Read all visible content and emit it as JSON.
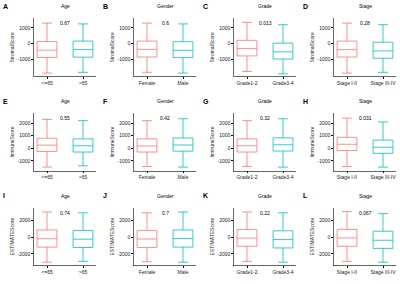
{
  "chart_data": [
    {
      "type": "box",
      "label": "A",
      "title": "Age",
      "annotation": "0.67",
      "y_label": "StromalScore",
      "categories": [
        "<=65",
        ">65"
      ],
      "series": [
        {
          "name": "<=65",
          "color": "#F8766D",
          "q1": -900,
          "median": -430,
          "q3": 120,
          "lower": -1900,
          "upper": 1300
        },
        {
          "name": ">65",
          "color": "#00BFC4",
          "q1": -880,
          "median": -400,
          "q3": 150,
          "lower": -1850,
          "upper": 1250
        }
      ],
      "ylim": [
        -2100,
        1600
      ],
      "yticks": [
        -1000,
        0,
        1000
      ]
    },
    {
      "type": "box",
      "label": "B",
      "title": "Gender",
      "annotation": "0.6",
      "y_label": "StromalScore",
      "categories": [
        "Female",
        "Male"
      ],
      "series": [
        {
          "name": "Female",
          "color": "#F8766D",
          "q1": -870,
          "median": -380,
          "q3": 150,
          "lower": -1850,
          "upper": 1300
        },
        {
          "name": "Male",
          "color": "#00BFC4",
          "q1": -910,
          "median": -440,
          "q3": 110,
          "lower": -1900,
          "upper": 1250
        }
      ],
      "ylim": [
        -2100,
        1600
      ],
      "yticks": [
        -1000,
        0,
        1000
      ]
    },
    {
      "type": "box",
      "label": "C",
      "title": "Grade",
      "annotation": "0.013",
      "y_label": "StromalScore",
      "categories": [
        "Grade1-2",
        "Grade3-4"
      ],
      "series": [
        {
          "name": "Grade1-2",
          "color": "#F8766D",
          "q1": -800,
          "median": -330,
          "q3": 200,
          "lower": -1800,
          "upper": 1350
        },
        {
          "name": "Grade3-4",
          "color": "#00BFC4",
          "q1": -1000,
          "median": -540,
          "q3": 20,
          "lower": -1950,
          "upper": 1200
        }
      ],
      "ylim": [
        -2100,
        1600
      ],
      "yticks": [
        -1000,
        0,
        1000
      ]
    },
    {
      "type": "box",
      "label": "D",
      "title": "Stage",
      "annotation": "0.28",
      "y_label": "StromalScore",
      "categories": [
        "Stage I-II",
        "Stage III-IV"
      ],
      "series": [
        {
          "name": "Stage I-II",
          "color": "#F8766D",
          "q1": -870,
          "median": -400,
          "q3": 150,
          "lower": -1900,
          "upper": 1300
        },
        {
          "name": "Stage III-IV",
          "color": "#00BFC4",
          "q1": -950,
          "median": -480,
          "q3": 80,
          "lower": -1850,
          "upper": 1200
        }
      ],
      "ylim": [
        -2100,
        1600
      ],
      "yticks": [
        -1000,
        0,
        1000
      ]
    },
    {
      "type": "box",
      "label": "E",
      "title": "Age",
      "annotation": "0.55",
      "y_label": "ImmuneScore",
      "categories": [
        "<=65",
        ">65"
      ],
      "series": [
        {
          "name": "<=65",
          "color": "#F8766D",
          "q1": -250,
          "median": 250,
          "q3": 800,
          "lower": -1500,
          "upper": 2300
        },
        {
          "name": ">65",
          "color": "#00BFC4",
          "q1": -300,
          "median": 200,
          "q3": 750,
          "lower": -1400,
          "upper": 2200
        }
      ],
      "ylim": [
        -1800,
        2800
      ],
      "yticks": [
        -1000,
        0,
        1000,
        2000
      ]
    },
    {
      "type": "box",
      "label": "F",
      "title": "Gender",
      "annotation": "0.42",
      "y_label": "ImmuneScore",
      "categories": [
        "Female",
        "Male"
      ],
      "series": [
        {
          "name": "Female",
          "color": "#F8766D",
          "q1": -300,
          "median": 180,
          "q3": 750,
          "lower": -1450,
          "upper": 2200
        },
        {
          "name": "Male",
          "color": "#00BFC4",
          "q1": -230,
          "median": 260,
          "q3": 820,
          "lower": -1500,
          "upper": 2350
        }
      ],
      "ylim": [
        -1800,
        2800
      ],
      "yticks": [
        -1000,
        0,
        1000,
        2000
      ]
    },
    {
      "type": "box",
      "label": "G",
      "title": "Grade",
      "annotation": "0.32",
      "y_label": "ImmuneScore",
      "categories": [
        "Grade1-2",
        "Grade3-4"
      ],
      "series": [
        {
          "name": "Grade1-2",
          "color": "#F8766D",
          "q1": -300,
          "median": 200,
          "q3": 750,
          "lower": -1450,
          "upper": 2200
        },
        {
          "name": "Grade3-4",
          "color": "#00BFC4",
          "q1": -220,
          "median": 280,
          "q3": 830,
          "lower": -1500,
          "upper": 2350
        }
      ],
      "ylim": [
        -1800,
        2800
      ],
      "yticks": [
        -1000,
        0,
        1000,
        2000
      ]
    },
    {
      "type": "box",
      "label": "H",
      "title": "Stage",
      "annotation": "0.031",
      "y_label": "ImmuneScore",
      "categories": [
        "Stage I-II",
        "Stage III-IV"
      ],
      "series": [
        {
          "name": "Stage I-II",
          "color": "#F8766D",
          "q1": -180,
          "median": 320,
          "q3": 870,
          "lower": -1450,
          "upper": 2400
        },
        {
          "name": "Stage III-IV",
          "color": "#00BFC4",
          "q1": -400,
          "median": 80,
          "q3": 650,
          "lower": -1500,
          "upper": 2100
        }
      ],
      "ylim": [
        -1800,
        2800
      ],
      "yticks": [
        -1000,
        0,
        1000,
        2000
      ]
    },
    {
      "type": "box",
      "label": "I",
      "title": "Age",
      "annotation": "0.74",
      "y_label": "ESTIMATEScore",
      "categories": [
        "<=65",
        ">65"
      ],
      "series": [
        {
          "name": "<=65",
          "color": "#F8766D",
          "q1": -1200,
          "median": -200,
          "q3": 850,
          "lower": -3000,
          "upper": 3000
        },
        {
          "name": ">65",
          "color": "#00BFC4",
          "q1": -1250,
          "median": -250,
          "q3": 800,
          "lower": -2900,
          "upper": 2900
        }
      ],
      "ylim": [
        -3400,
        3500
      ],
      "yticks": [
        -2000,
        0,
        2000
      ]
    },
    {
      "type": "box",
      "label": "J",
      "title": "Gender",
      "annotation": "0.7",
      "y_label": "ESTIMATEScore",
      "categories": [
        "Female",
        "Male"
      ],
      "series": [
        {
          "name": "Female",
          "color": "#F8766D",
          "q1": -1250,
          "median": -230,
          "q3": 800,
          "lower": -2950,
          "upper": 2900
        },
        {
          "name": "Male",
          "color": "#00BFC4",
          "q1": -1200,
          "median": -180,
          "q3": 850,
          "lower": -3000,
          "upper": 3000
        }
      ],
      "ylim": [
        -3400,
        3500
      ],
      "yticks": [
        -2000,
        0,
        2000
      ]
    },
    {
      "type": "box",
      "label": "K",
      "title": "Grade",
      "annotation": "0.22",
      "y_label": "ESTIMATEScore",
      "categories": [
        "Grade1-2",
        "Grade3-4"
      ],
      "series": [
        {
          "name": "Grade1-2",
          "color": "#F8766D",
          "q1": -1100,
          "median": -120,
          "q3": 900,
          "lower": -2900,
          "upper": 3000
        },
        {
          "name": "Grade3-4",
          "color": "#00BFC4",
          "q1": -1300,
          "median": -300,
          "q3": 750,
          "lower": -3000,
          "upper": 2900
        }
      ],
      "ylim": [
        -3400,
        3500
      ],
      "yticks": [
        -2000,
        0,
        2000
      ]
    },
    {
      "type": "box",
      "label": "L",
      "title": "Stage",
      "annotation": "0.067",
      "y_label": "ESTIMATEScore",
      "categories": [
        "Stage I-II",
        "Stage III-IV"
      ],
      "series": [
        {
          "name": "Stage I-II",
          "color": "#F8766D",
          "q1": -1100,
          "median": -100,
          "q3": 920,
          "lower": -2900,
          "upper": 3050
        },
        {
          "name": "Stage III-IV",
          "color": "#00BFC4",
          "q1": -1350,
          "median": -380,
          "q3": 700,
          "lower": -3000,
          "upper": 2800
        }
      ],
      "ylim": [
        -3400,
        3500
      ],
      "yticks": [
        -2000,
        0,
        2000
      ]
    }
  ]
}
